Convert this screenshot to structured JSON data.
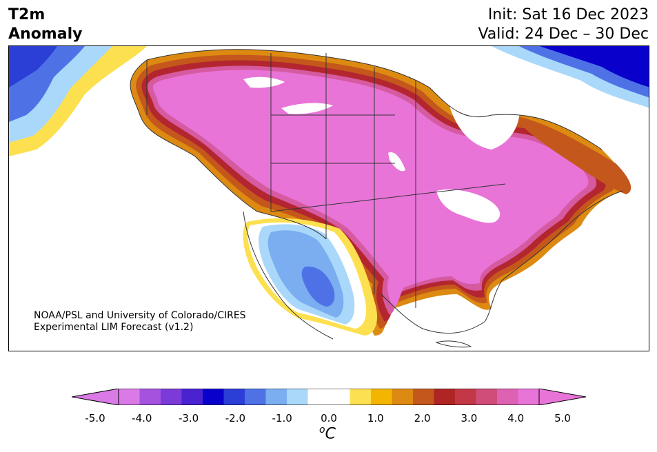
{
  "title": {
    "line1": "T2m",
    "line2": "Anomaly"
  },
  "init": {
    "line1": "Init: Sat 16 Dec 2023",
    "line2": "Valid: 24 Dec – 30 Dec"
  },
  "credit": {
    "line1": "NOAA/PSL and University of Colorado/CIRES",
    "line2": "Experimental LIM Forecast (v1.2)"
  },
  "colorbar": {
    "ticks": [
      "-5.0",
      "-4.0",
      "-3.0",
      "-2.0",
      "-1.0",
      "0.0",
      "1.0",
      "2.0",
      "3.0",
      "4.0",
      "5.0"
    ],
    "unit_base": "C",
    "unit_sup": "o",
    "colors": [
      "#d97ae6",
      "#a552de",
      "#7a3bd9",
      "#4a22d0",
      "#0a00cc",
      "#2b3ed6",
      "#4e72e6",
      "#7aaef0",
      "#aad8fa",
      "#ffffff",
      "#ffffff",
      "#fde050",
      "#f3b500",
      "#dd8a12",
      "#c4571b",
      "#ae2523",
      "#c23846",
      "#cf4d78",
      "#dd62b2",
      "#e874d8"
    ]
  },
  "map": {
    "colors": {
      "magenta": "#e874d8",
      "pink": "#d65aa0",
      "crimson": "#b32630",
      "brown": "#c4571b",
      "orange": "#dd8a12",
      "gold": "#f3b500",
      "yellow": "#fde050",
      "light_blue": "#aad8fa",
      "mid_blue": "#7aaef0",
      "blue": "#4e72e6",
      "deep_blue": "#2b3ed6",
      "navy": "#0a00cc",
      "coast": "#333333"
    }
  }
}
